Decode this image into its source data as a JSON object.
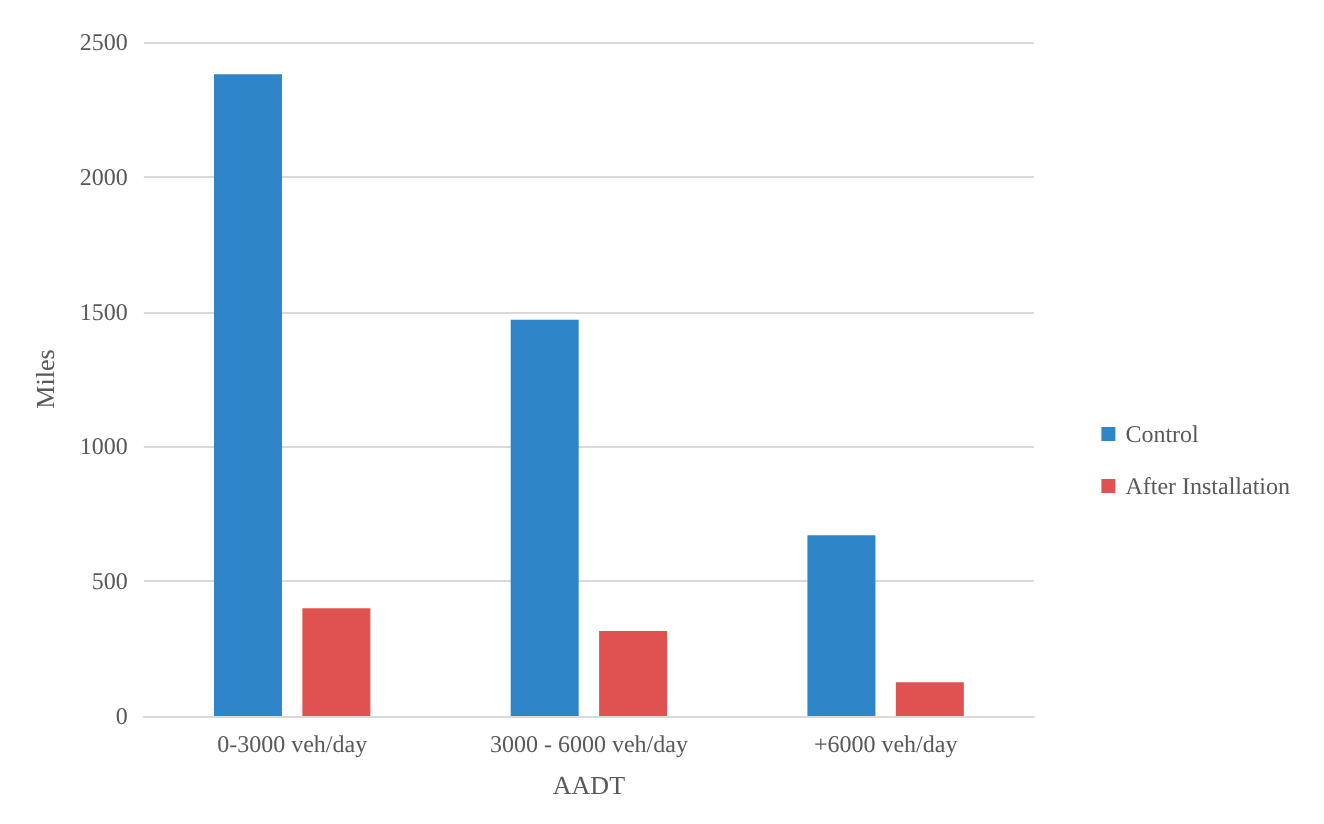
{
  "chart_data": {
    "type": "bar",
    "xlabel": "AADT",
    "ylabel": "Miles",
    "categories": [
      "0-3000 veh/day",
      "3000 - 6000 veh/day",
      "+6000 veh/day"
    ],
    "series": [
      {
        "name": "Control",
        "color": "#2e86c8",
        "values": [
          2380,
          1470,
          670
        ]
      },
      {
        "name": "After Installation",
        "color": "#e05252",
        "values": [
          400,
          315,
          125
        ]
      }
    ],
    "ylim": [
      0,
      2500
    ],
    "yticks": [
      0,
      500,
      1000,
      1500,
      2000,
      2500
    ],
    "grid": "y",
    "legend": "right"
  }
}
